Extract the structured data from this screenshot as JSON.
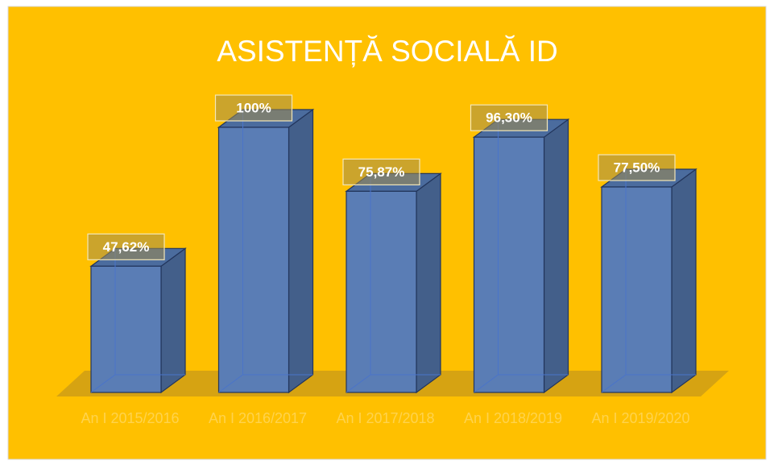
{
  "chart_data": {
    "type": "bar3d",
    "title": "ASISTENȚĂ SOCIALĂ ID",
    "categories": [
      "An I 2015/2016",
      "An I 2016/2017",
      "An I 2017/2018",
      "An I 2018/2019",
      "An I 2019/2020"
    ],
    "values": [
      47.62,
      100,
      75.87,
      96.3,
      77.5
    ],
    "value_labels": [
      "47,62%",
      "100%",
      "75,87%",
      "96,30%",
      "77,50%"
    ],
    "color": "#5a7db5"
  }
}
